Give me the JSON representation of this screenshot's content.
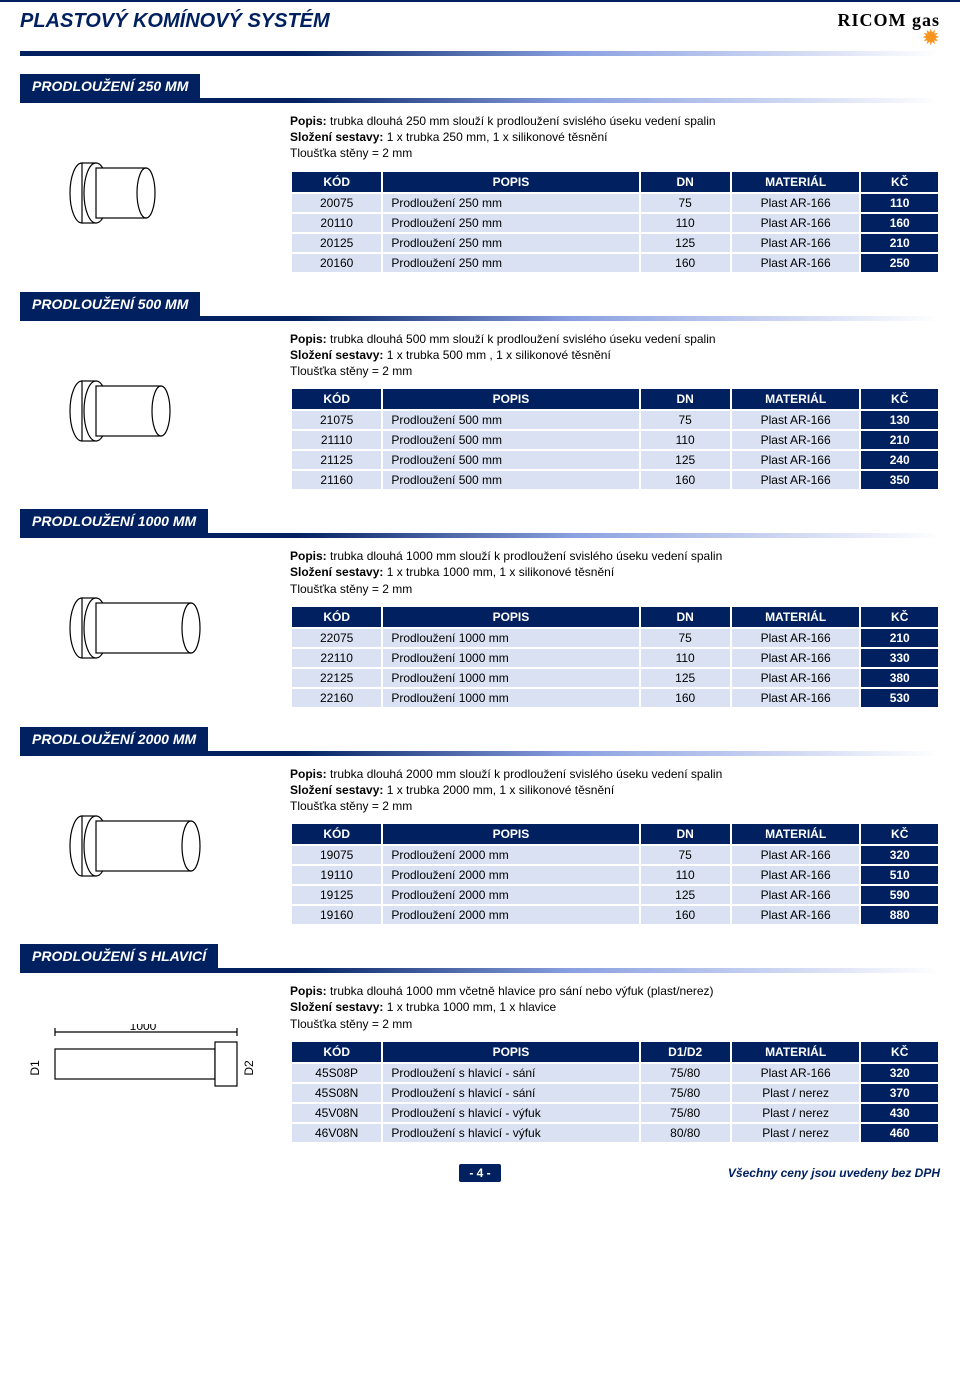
{
  "header": {
    "title": "PLASTOVÝ KOMÍNOVÝ SYSTÉM",
    "brand_text": "RICOM gas"
  },
  "columns_std": {
    "kod": "KÓD",
    "popis": "POPIS",
    "dn": "DN",
    "mat": "MATERIÁL",
    "kc": "KČ"
  },
  "columns_hlavici": {
    "kod": "KÓD",
    "popis": "POPIS",
    "dn": "D1/D2",
    "mat": "MATERIÁL",
    "kc": "KČ"
  },
  "footer": {
    "page": "- 4 -",
    "note": "Všechny ceny jsou uvedeny bez DPH"
  },
  "sections": [
    {
      "title": "PRODLOUŽENÍ 250 MM",
      "desc_popis_label": "Popis:",
      "desc_popis": " trubka dlouhá 250 mm slouží k prodloužení svislého úseku vedení spalin",
      "desc_slozeni_label": "Složení sestavy:",
      "desc_slozeni": " 1 x trubka 250 mm,  1 x silikonové těsnění",
      "desc_tloustka": "Tloušťka stěny = 2 mm",
      "rows": [
        {
          "kod": "20075",
          "popis": "Prodloužení 250 mm",
          "dn": "75",
          "mat": "Plast AR-166",
          "kc": "110"
        },
        {
          "kod": "20110",
          "popis": "Prodloužení 250 mm",
          "dn": "110",
          "mat": "Plast AR-166",
          "kc": "160"
        },
        {
          "kod": "20125",
          "popis": "Prodloužení 250 mm",
          "dn": "125",
          "mat": "Plast AR-166",
          "kc": "210"
        },
        {
          "kod": "20160",
          "popis": "Prodloužení 250 mm",
          "dn": "160",
          "mat": "Plast AR-166",
          "kc": "250"
        }
      ]
    },
    {
      "title": "PRODLOUŽENÍ 500 MM",
      "desc_popis_label": "Popis:",
      "desc_popis": " trubka dlouhá 500 mm slouží k prodloužení svislého úseku vedení spalin",
      "desc_slozeni_label": "Složení sestavy:",
      "desc_slozeni": " 1 x trubka 500 mm , 1 x silikonové těsnění",
      "desc_tloustka": "Tloušťka stěny = 2 mm",
      "rows": [
        {
          "kod": "21075",
          "popis": "Prodloužení 500 mm",
          "dn": "75",
          "mat": "Plast AR-166",
          "kc": "130"
        },
        {
          "kod": "21110",
          "popis": "Prodloužení 500 mm",
          "dn": "110",
          "mat": "Plast AR-166",
          "kc": "210"
        },
        {
          "kod": "21125",
          "popis": "Prodloužení 500 mm",
          "dn": "125",
          "mat": "Plast AR-166",
          "kc": "240"
        },
        {
          "kod": "21160",
          "popis": "Prodloužení 500 mm",
          "dn": "160",
          "mat": "Plast AR-166",
          "kc": "350"
        }
      ]
    },
    {
      "title": "PRODLOUŽENÍ 1000 MM",
      "desc_popis_label": "Popis:",
      "desc_popis": " trubka dlouhá 1000 mm slouží k prodloužení svislého úseku vedení spalin",
      "desc_slozeni_label": "Složení sestavy:",
      "desc_slozeni": " 1 x trubka 1000 mm, 1 x silikonové těsnění",
      "desc_tloustka": "Tloušťka stěny = 2 mm",
      "rows": [
        {
          "kod": "22075",
          "popis": "Prodloužení 1000 mm",
          "dn": "75",
          "mat": "Plast AR-166",
          "kc": "210"
        },
        {
          "kod": "22110",
          "popis": "Prodloužení 1000 mm",
          "dn": "110",
          "mat": "Plast AR-166",
          "kc": "330"
        },
        {
          "kod": "22125",
          "popis": "Prodloužení 1000 mm",
          "dn": "125",
          "mat": "Plast AR-166",
          "kc": "380"
        },
        {
          "kod": "22160",
          "popis": "Prodloužení 1000 mm",
          "dn": "160",
          "mat": "Plast AR-166",
          "kc": "530"
        }
      ]
    },
    {
      "title": "PRODLOUŽENÍ 2000 MM",
      "desc_popis_label": "Popis:",
      "desc_popis": " trubka dlouhá 2000 mm slouží k prodloužení svislého úseku vedení spalin",
      "desc_slozeni_label": "Složení sestavy:",
      "desc_slozeni": " 1 x trubka 2000 mm, 1 x silikonové těsnění",
      "desc_tloustka": "Tloušťka stěny = 2 mm",
      "rows": [
        {
          "kod": "19075",
          "popis": "Prodloužení 2000 mm",
          "dn": "75",
          "mat": "Plast AR-166",
          "kc": "320"
        },
        {
          "kod": "19110",
          "popis": "Prodloužení 2000 mm",
          "dn": "110",
          "mat": "Plast AR-166",
          "kc": "510"
        },
        {
          "kod": "19125",
          "popis": "Prodloužení 2000 mm",
          "dn": "125",
          "mat": "Plast AR-166",
          "kc": "590"
        },
        {
          "kod": "19160",
          "popis": "Prodloužení 2000 mm",
          "dn": "160",
          "mat": "Plast AR-166",
          "kc": "880"
        }
      ]
    },
    {
      "title": "PRODLOUŽENÍ S HLAVICÍ",
      "desc_popis_label": "Popis:",
      "desc_popis": " trubka dlouhá 1000 mm včetně hlavice pro sání nebo výfuk (plast/nerez)",
      "desc_slozeni_label": "Složení sestavy:",
      "desc_slozeni": " 1 x trubka 1000 mm, 1 x hlavice",
      "desc_tloustka": "Tloušťka stěny = 2 mm",
      "hlavici": true,
      "rows": [
        {
          "kod": "45S08P",
          "popis": "Prodloužení s hlavicí - sání",
          "dn": "75/80",
          "mat": "Plast AR-166",
          "kc": "320"
        },
        {
          "kod": "45S08N",
          "popis": "Prodloužení s hlavicí - sání",
          "dn": "75/80",
          "mat": "Plast / nerez",
          "kc": "370"
        },
        {
          "kod": "45V08N",
          "popis": "Prodloužení s hlavicí - výfuk",
          "dn": "75/80",
          "mat": "Plast / nerez",
          "kc": "430"
        },
        {
          "kod": "46V08N",
          "popis": "Prodloužení s hlavicí - výfuk",
          "dn": "80/80",
          "mat": "Plast / nerez",
          "kc": "460"
        }
      ]
    }
  ]
}
